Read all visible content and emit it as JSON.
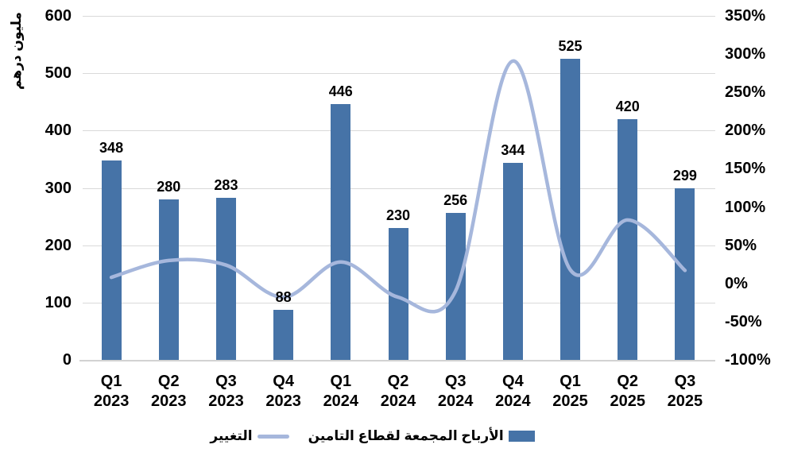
{
  "chart_data": {
    "type": "bar",
    "subtype": "combo-bar-line",
    "direction": "rtl",
    "categories": [
      {
        "quarter": "Q1",
        "year": "2023"
      },
      {
        "quarter": "Q2",
        "year": "2023"
      },
      {
        "quarter": "Q3",
        "year": "2023"
      },
      {
        "quarter": "Q4",
        "year": "2023"
      },
      {
        "quarter": "Q1",
        "year": "2024"
      },
      {
        "quarter": "Q2",
        "year": "2024"
      },
      {
        "quarter": "Q3",
        "year": "2024"
      },
      {
        "quarter": "Q4",
        "year": "2024"
      },
      {
        "quarter": "Q1",
        "year": "2025"
      },
      {
        "quarter": "Q2",
        "year": "2025"
      },
      {
        "quarter": "Q3",
        "year": "2025"
      }
    ],
    "series": [
      {
        "name": "الأرباح المجمعة لقطاع التامين",
        "type": "bar",
        "axis": "left",
        "color": "#4673a7",
        "values": [
          348,
          280,
          283,
          88,
          446,
          230,
          256,
          344,
          525,
          420,
          299
        ],
        "data_labels": [
          "348",
          "280",
          "283",
          "88",
          "446",
          "230",
          "256",
          "344",
          "525",
          "420",
          "299"
        ]
      },
      {
        "name": "التغيير",
        "type": "line",
        "smooth": true,
        "axis": "right",
        "color": "#a6b7dc",
        "values_pct": [
          8,
          30,
          24,
          -18,
          28,
          -18,
          -10,
          291,
          18,
          83,
          17
        ]
      }
    ],
    "left_axis": {
      "title": "مليون درهم",
      "min": 0,
      "max": 600,
      "step": 100,
      "ticks": [
        "600",
        "500",
        "400",
        "300",
        "200",
        "100",
        "0"
      ]
    },
    "right_axis": {
      "min": -100,
      "max": 350,
      "step": 50,
      "format": "percent",
      "ticks": [
        "350%",
        "300%",
        "250%",
        "200%",
        "150%",
        "100%",
        "50%",
        "0%",
        "-50%",
        "-100%"
      ]
    },
    "gridlines": "horizontal",
    "grid_color": "#d9d9d9",
    "background": "#ffffff",
    "text_color": "#000000",
    "legend_position": "bottom"
  }
}
